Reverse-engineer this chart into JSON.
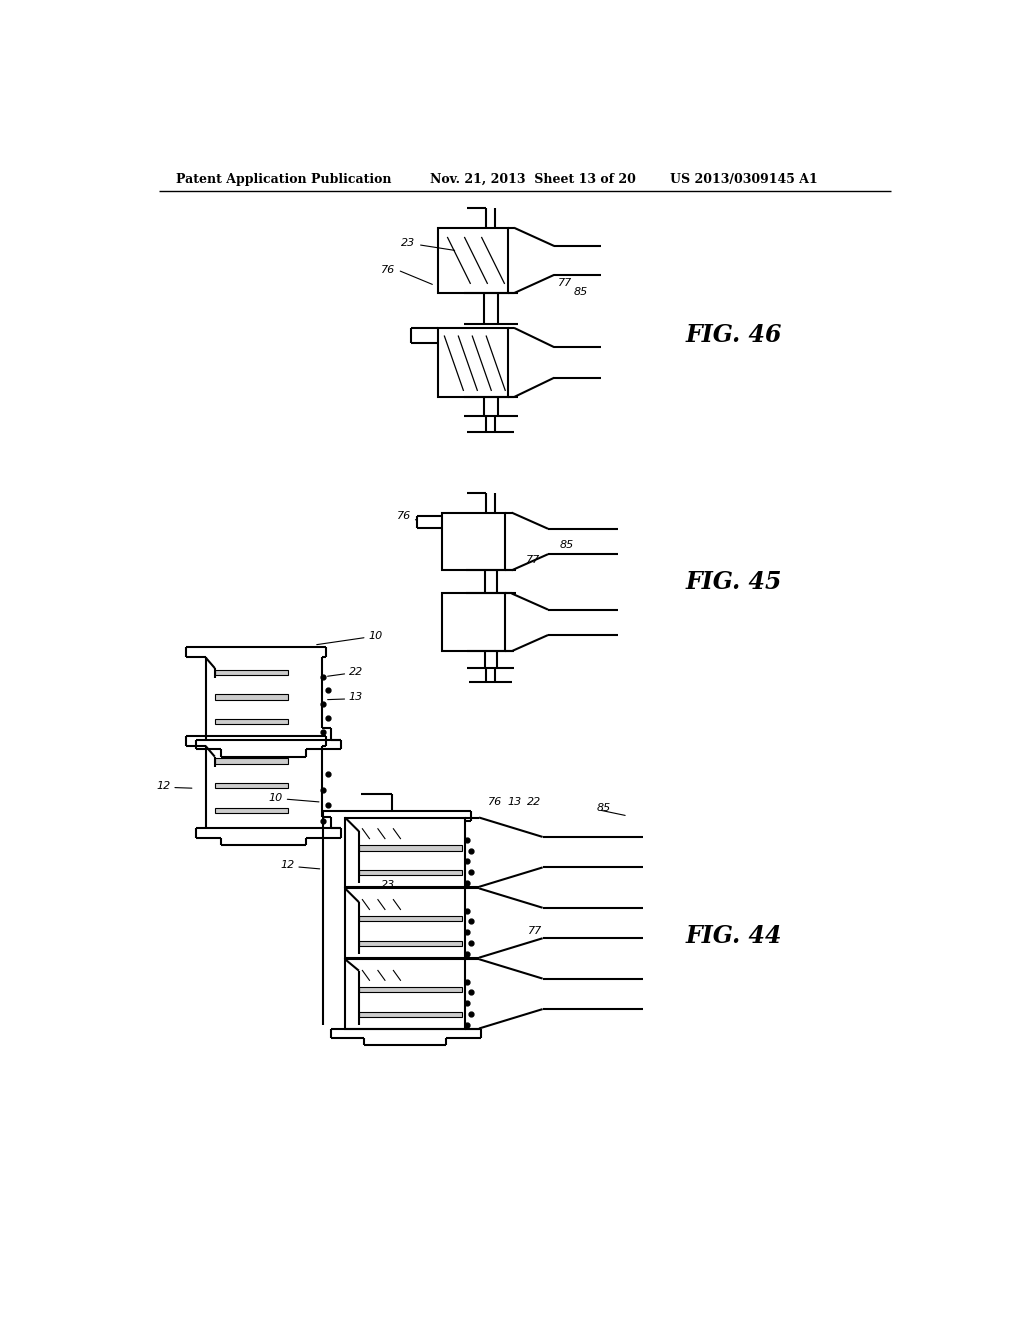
{
  "bg_color": "#ffffff",
  "header_left": "Patent Application Publication",
  "header_center": "Nov. 21, 2013  Sheet 13 of 20",
  "header_right": "US 2013/0309145 A1",
  "line_color": "#000000",
  "lw": 1.5
}
